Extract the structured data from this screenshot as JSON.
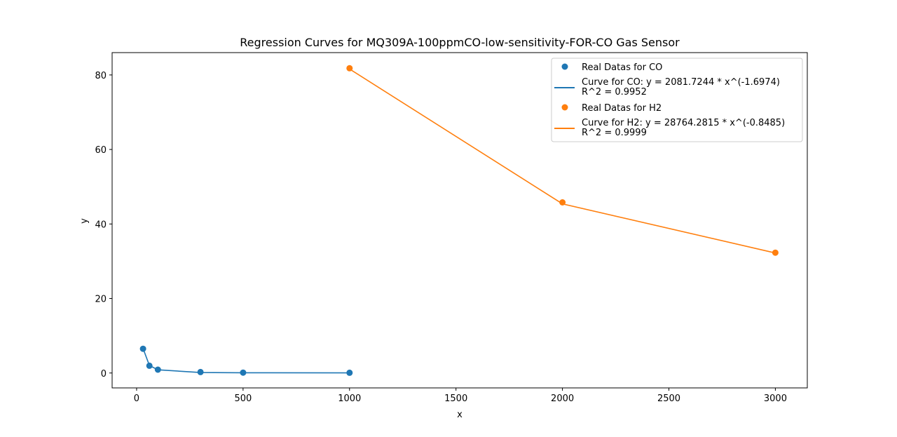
{
  "chart_data": {
    "type": "line",
    "title": "Regression Curves for MQ309A-100ppmCO-low-sensitivity-FOR-CO Gas Sensor",
    "xlabel": "x",
    "ylabel": "y",
    "xlim": [
      -115,
      3150
    ],
    "ylim": [
      -4.0,
      86.0
    ],
    "xticks": [
      0,
      500,
      1000,
      1500,
      2000,
      2500,
      3000
    ],
    "yticks": [
      0,
      20,
      40,
      60,
      80
    ],
    "grid": false,
    "legend_position": "top-right",
    "colors": {
      "co": "#1f77b4",
      "h2": "#ff7f0e"
    },
    "series": [
      {
        "name": "Real Datas for CO",
        "kind": "scatter",
        "color": "#1f77b4",
        "x": [
          30,
          60,
          100,
          300,
          500,
          1000
        ],
        "y": [
          6.5,
          1.95,
          0.9,
          0.25,
          0.1,
          0.06
        ]
      },
      {
        "name": "Curve for CO: y = 2081.7244 * x^(-1.6974)",
        "name2": "R^2 = 0.9952",
        "kind": "line",
        "color": "#1f77b4",
        "x": [
          30,
          60,
          100,
          300,
          500,
          1000
        ],
        "y": [
          6.6,
          2.03,
          0.86,
          0.13,
          0.06,
          0.02
        ]
      },
      {
        "name": "Real Datas for H2",
        "kind": "scatter",
        "color": "#ff7f0e",
        "x": [
          1000,
          2000,
          3000
        ],
        "y": [
          81.8,
          45.8,
          32.3
        ]
      },
      {
        "name": "Curve for H2: y = 28764.2815 * x^(-0.8485)",
        "name2": "R^2 = 0.9999",
        "kind": "line",
        "color": "#ff7f0e",
        "x": [
          1000,
          2000,
          3000
        ],
        "y": [
          81.6,
          45.4,
          32.2
        ]
      }
    ]
  }
}
